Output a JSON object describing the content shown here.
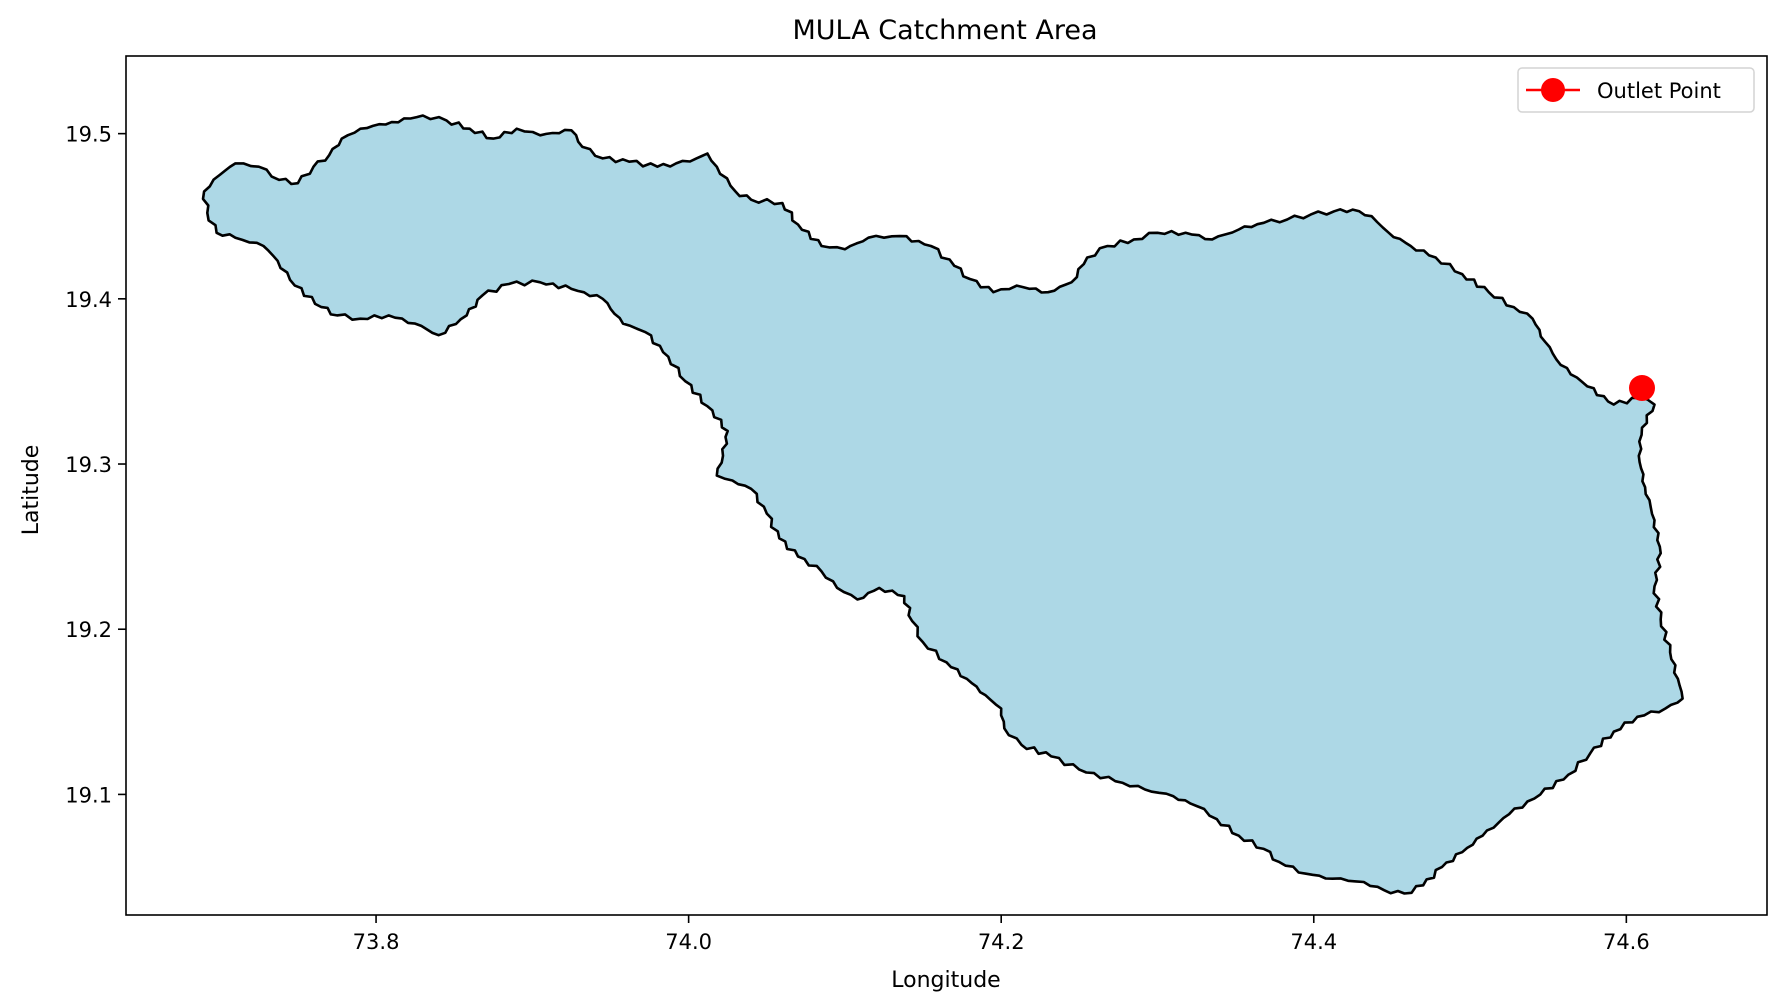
{
  "chart_data": {
    "type": "map",
    "title": "MULA Catchment Area",
    "xlabel": "Longitude",
    "ylabel": "Latitude",
    "xlim": [
      73.64,
      74.69
    ],
    "ylim": [
      19.027,
      19.547
    ],
    "xticks": [
      73.8,
      74.0,
      74.2,
      74.4,
      74.6
    ],
    "xtick_labels": [
      "73.8",
      "74.0",
      "74.2",
      "74.4",
      "74.6"
    ],
    "yticks": [
      19.1,
      19.2,
      19.3,
      19.4,
      19.5
    ],
    "ytick_labels": [
      "19.1",
      "19.2",
      "19.3",
      "19.4",
      "19.5"
    ],
    "grid": false,
    "legend": {
      "placement": "top-right",
      "entries": [
        {
          "label": "Outlet Point",
          "color": "#ff0000",
          "marker": "circle"
        }
      ]
    },
    "catchment": {
      "fill_color": "#add8e6",
      "edge_color": "#000000",
      "boundary": [
        [
          73.69,
          19.465
        ],
        [
          73.7,
          19.475
        ],
        [
          73.71,
          19.482
        ],
        [
          73.725,
          19.48
        ],
        [
          73.738,
          19.472
        ],
        [
          73.75,
          19.47
        ],
        [
          73.76,
          19.48
        ],
        [
          73.77,
          19.487
        ],
        [
          73.778,
          19.497
        ],
        [
          73.79,
          19.503
        ],
        [
          73.81,
          19.507
        ],
        [
          73.83,
          19.511
        ],
        [
          73.845,
          19.508
        ],
        [
          73.86,
          19.503
        ],
        [
          73.875,
          19.497
        ],
        [
          73.89,
          19.503
        ],
        [
          73.905,
          19.499
        ],
        [
          73.925,
          19.502
        ],
        [
          73.932,
          19.492
        ],
        [
          73.945,
          19.485
        ],
        [
          73.962,
          19.483
        ],
        [
          73.98,
          19.48
        ],
        [
          73.992,
          19.482
        ],
        [
          74.005,
          19.485
        ],
        [
          74.012,
          19.488
        ],
        [
          74.018,
          19.48
        ],
        [
          74.03,
          19.465
        ],
        [
          74.04,
          19.46
        ],
        [
          74.06,
          19.458
        ],
        [
          74.07,
          19.445
        ],
        [
          74.085,
          19.432
        ],
        [
          74.1,
          19.43
        ],
        [
          74.115,
          19.437
        ],
        [
          74.135,
          19.438
        ],
        [
          74.155,
          19.432
        ],
        [
          74.17,
          19.42
        ],
        [
          74.18,
          19.412
        ],
        [
          74.195,
          19.404
        ],
        [
          74.21,
          19.408
        ],
        [
          74.23,
          19.404
        ],
        [
          74.245,
          19.41
        ],
        [
          74.255,
          19.425
        ],
        [
          74.268,
          19.432
        ],
        [
          74.285,
          19.436
        ],
        [
          74.3,
          19.44
        ],
        [
          74.318,
          19.44
        ],
        [
          74.335,
          19.436
        ],
        [
          74.352,
          19.442
        ],
        [
          74.368,
          19.446
        ],
        [
          74.383,
          19.448
        ],
        [
          74.398,
          19.451
        ],
        [
          74.413,
          19.453
        ],
        [
          74.425,
          19.454
        ],
        [
          74.437,
          19.45
        ],
        [
          74.448,
          19.44
        ],
        [
          74.462,
          19.432
        ],
        [
          74.478,
          19.425
        ],
        [
          74.495,
          19.415
        ],
        [
          74.512,
          19.404
        ],
        [
          74.528,
          19.395
        ],
        [
          74.54,
          19.388
        ],
        [
          74.548,
          19.374
        ],
        [
          74.558,
          19.36
        ],
        [
          74.575,
          19.347
        ],
        [
          74.592,
          19.336
        ],
        [
          74.608,
          19.34
        ],
        [
          74.618,
          19.336
        ],
        [
          74.61,
          19.322
        ],
        [
          74.608,
          19.305
        ],
        [
          74.612,
          19.286
        ],
        [
          74.618,
          19.266
        ],
        [
          74.622,
          19.246
        ],
        [
          74.618,
          19.226
        ],
        [
          74.622,
          19.206
        ],
        [
          74.628,
          19.186
        ],
        [
          74.633,
          19.17
        ],
        [
          74.636,
          19.158
        ],
        [
          74.625,
          19.152
        ],
        [
          74.607,
          19.147
        ],
        [
          74.592,
          19.138
        ],
        [
          74.577,
          19.125
        ],
        [
          74.563,
          19.112
        ],
        [
          74.545,
          19.1
        ],
        [
          74.525,
          19.088
        ],
        [
          74.508,
          19.075
        ],
        [
          74.495,
          19.065
        ],
        [
          74.482,
          19.056
        ],
        [
          74.47,
          19.045
        ],
        [
          74.458,
          19.04
        ],
        [
          74.445,
          19.042
        ],
        [
          74.432,
          19.047
        ],
        [
          74.412,
          19.049
        ],
        [
          74.395,
          19.052
        ],
        [
          74.378,
          19.059
        ],
        [
          74.368,
          19.067
        ],
        [
          74.352,
          19.075
        ],
        [
          74.338,
          19.085
        ],
        [
          74.325,
          19.093
        ],
        [
          74.31,
          19.099
        ],
        [
          74.292,
          19.103
        ],
        [
          74.273,
          19.108
        ],
        [
          74.25,
          19.115
        ],
        [
          74.232,
          19.123
        ],
        [
          74.213,
          19.13
        ],
        [
          74.202,
          19.14
        ],
        [
          74.2,
          19.152
        ],
        [
          74.19,
          19.16
        ],
        [
          74.178,
          19.17
        ],
        [
          74.165,
          19.18
        ],
        [
          74.15,
          19.192
        ],
        [
          74.143,
          19.205
        ],
        [
          74.138,
          19.22
        ],
        [
          74.122,
          19.225
        ],
        [
          74.108,
          19.218
        ],
        [
          74.095,
          19.225
        ],
        [
          74.085,
          19.235
        ],
        [
          74.07,
          19.244
        ],
        [
          74.058,
          19.255
        ],
        [
          74.05,
          19.27
        ],
        [
          74.04,
          19.285
        ],
        [
          74.028,
          19.29
        ],
        [
          74.018,
          19.293
        ],
        [
          74.022,
          19.305
        ],
        [
          74.025,
          19.32
        ],
        [
          74.012,
          19.335
        ],
        [
          73.998,
          19.35
        ],
        [
          73.987,
          19.365
        ],
        [
          73.972,
          19.38
        ],
        [
          73.958,
          19.385
        ],
        [
          73.945,
          19.4
        ],
        [
          73.925,
          19.406
        ],
        [
          73.905,
          19.41
        ],
        [
          73.885,
          19.409
        ],
        [
          73.868,
          19.402
        ],
        [
          73.858,
          19.39
        ],
        [
          73.84,
          19.378
        ],
        [
          73.825,
          19.385
        ],
        [
          73.808,
          19.39
        ],
        [
          73.79,
          19.388
        ],
        [
          73.775,
          19.39
        ],
        [
          73.765,
          19.395
        ],
        [
          73.748,
          19.408
        ],
        [
          73.737,
          19.423
        ],
        [
          73.728,
          19.432
        ],
        [
          73.71,
          19.437
        ],
        [
          73.698,
          19.44
        ],
        [
          73.692,
          19.452
        ],
        [
          73.69,
          19.465
        ]
      ]
    },
    "outlet_point": {
      "label": "Outlet Point",
      "lon": 74.61,
      "lat": 19.346,
      "color": "#ff0000"
    }
  }
}
